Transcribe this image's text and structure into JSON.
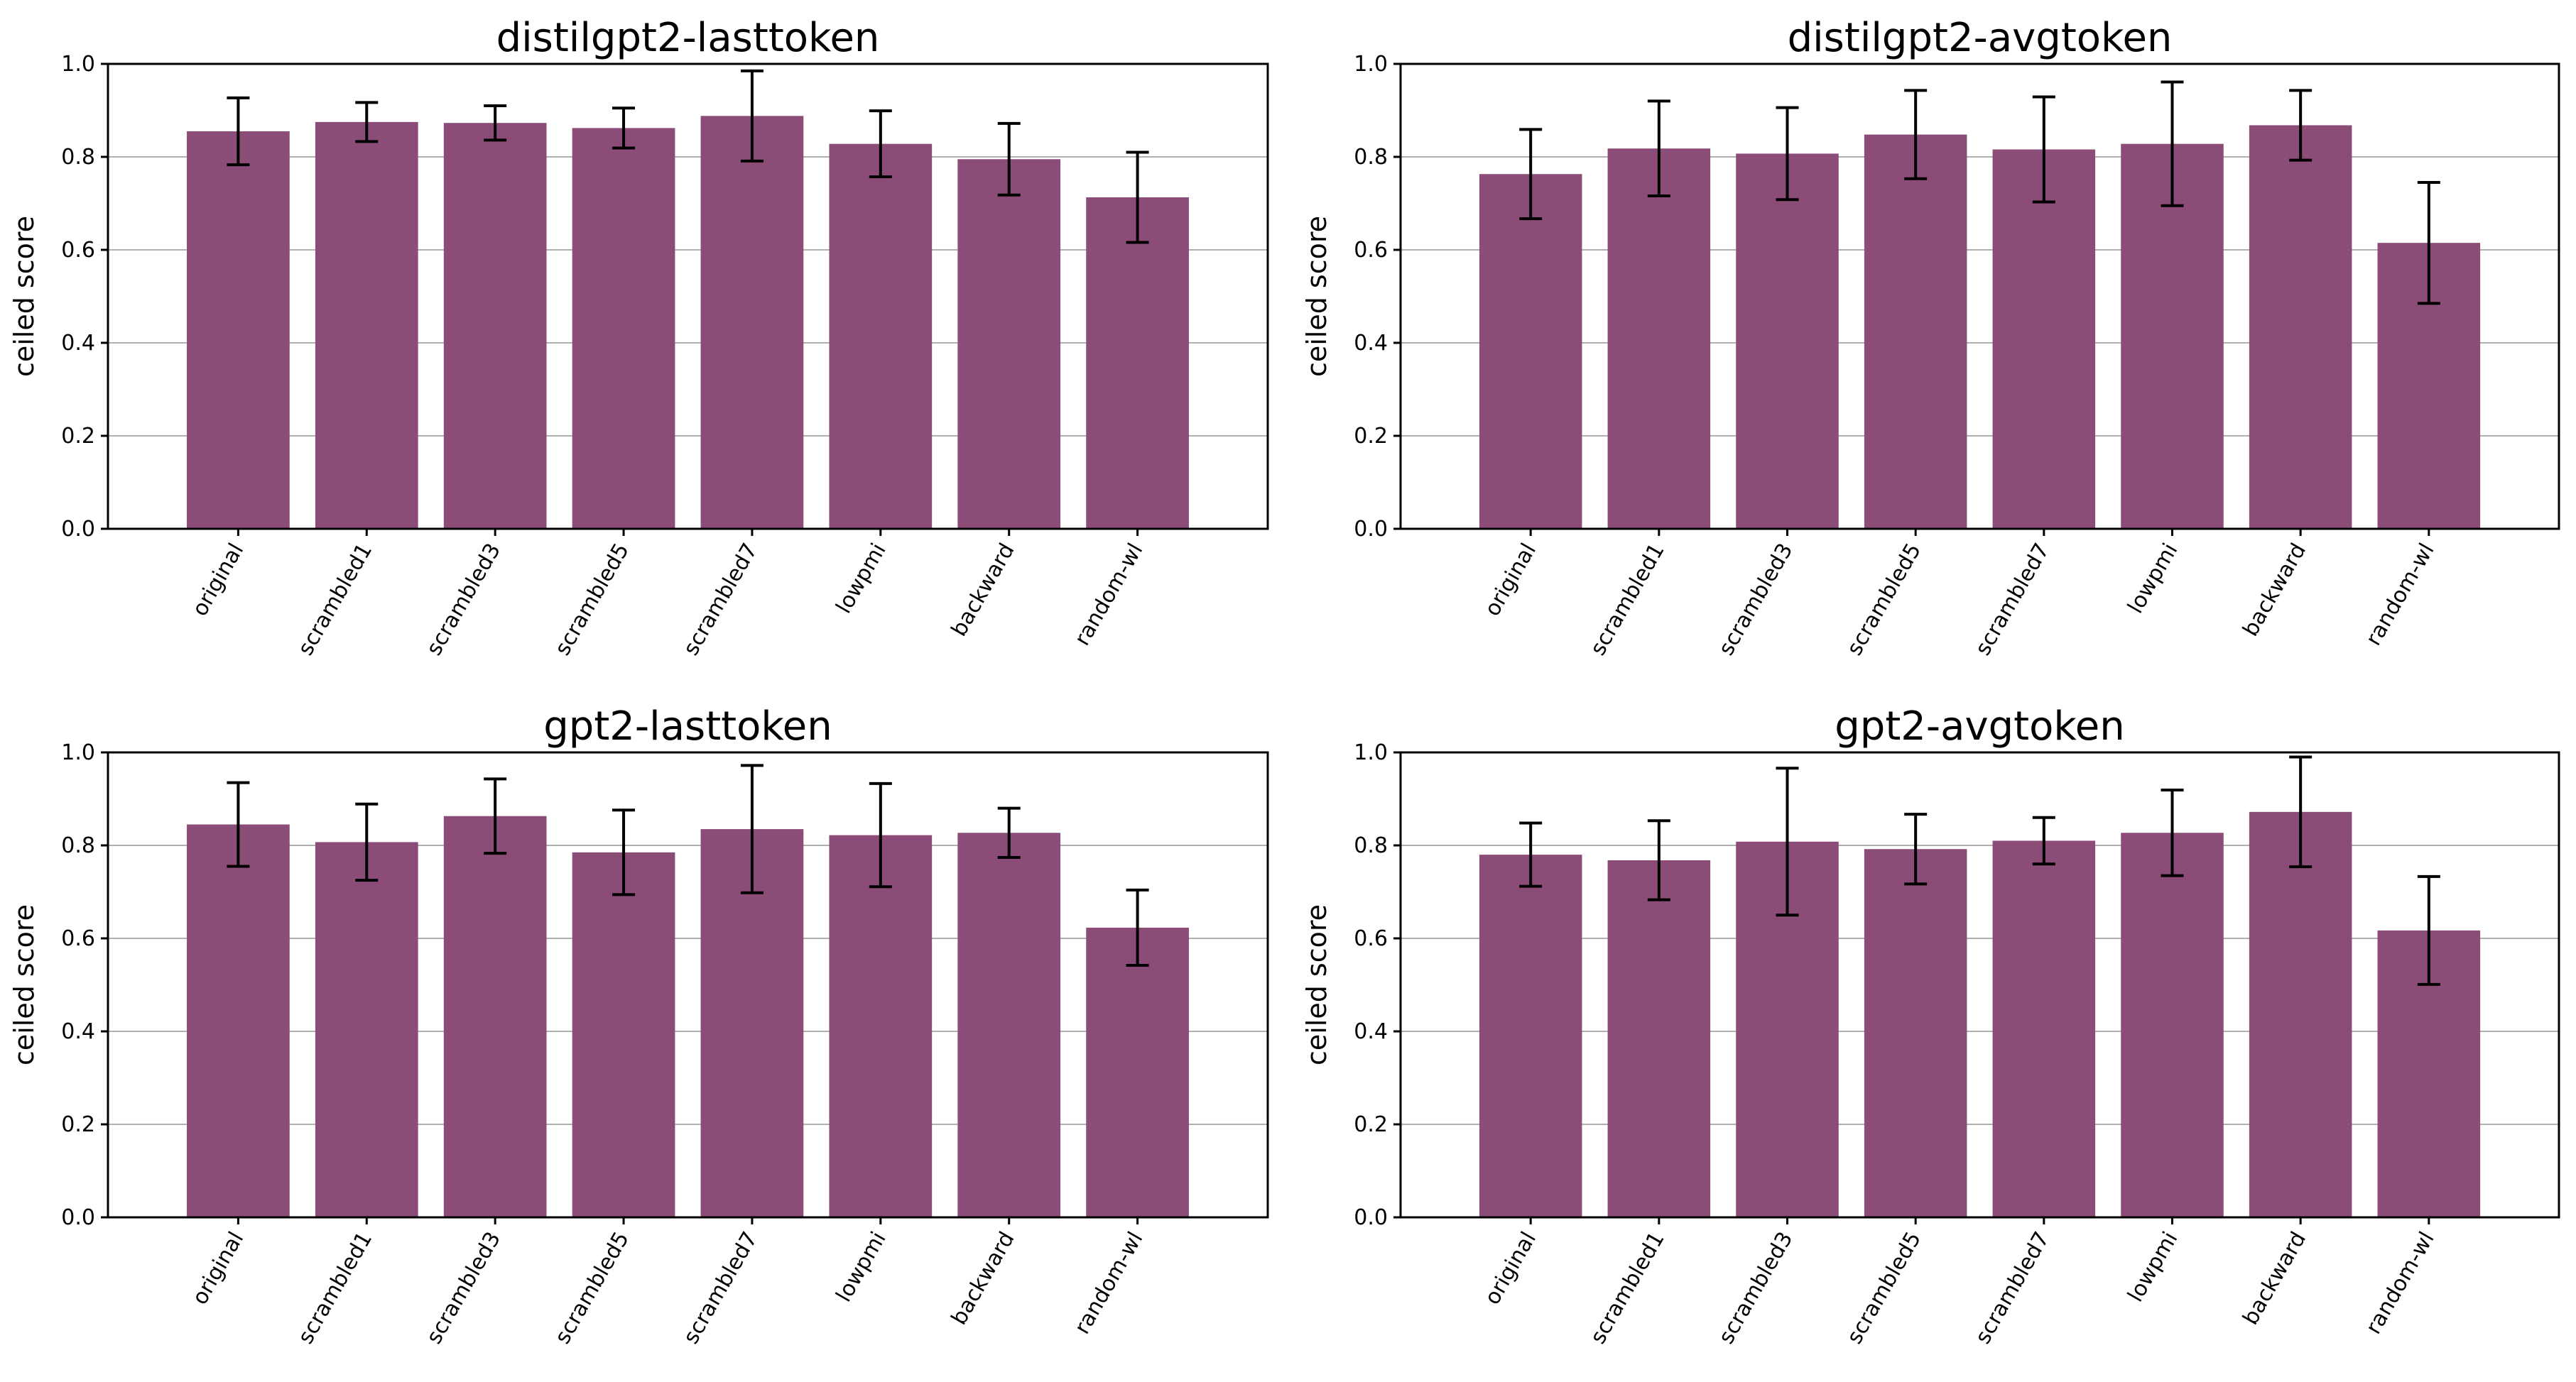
{
  "colors": {
    "bar": "#8B4D78",
    "grid": "#b0b0b0",
    "axis": "#000000",
    "error": "#000000"
  },
  "chart_data": [
    {
      "type": "bar",
      "title": "distilgpt2-lasttoken",
      "xlabel": "",
      "ylabel": "ceiled score",
      "ylim": [
        0,
        1.0
      ],
      "yticks": [
        "0.0",
        "0.2",
        "0.4",
        "0.6",
        "0.8",
        "1.0"
      ],
      "grid": "horizontal",
      "categories": [
        "original",
        "scrambled1",
        "scrambled3",
        "scrambled5",
        "scrambled7",
        "lowpmi",
        "backward",
        "random-wl"
      ],
      "values": [
        0.855,
        0.875,
        0.873,
        0.862,
        0.888,
        0.828,
        0.795,
        0.713
      ],
      "error": [
        0.072,
        0.042,
        0.037,
        0.043,
        0.097,
        0.071,
        0.077,
        0.097
      ]
    },
    {
      "type": "bar",
      "title": "distilgpt2-avgtoken",
      "xlabel": "",
      "ylabel": "ceiled score",
      "ylim": [
        0,
        1.0
      ],
      "yticks": [
        "0.0",
        "0.2",
        "0.4",
        "0.6",
        "0.8",
        "1.0"
      ],
      "grid": "horizontal",
      "categories": [
        "original",
        "scrambled1",
        "scrambled3",
        "scrambled5",
        "scrambled7",
        "lowpmi",
        "backward",
        "random-wl"
      ],
      "values": [
        0.763,
        0.818,
        0.807,
        0.848,
        0.816,
        0.828,
        0.868,
        0.615
      ],
      "error": [
        0.096,
        0.102,
        0.099,
        0.095,
        0.113,
        0.133,
        0.075,
        0.13
      ]
    },
    {
      "type": "bar",
      "title": "gpt2-lasttoken",
      "xlabel": "",
      "ylabel": "ceiled score",
      "ylim": [
        0,
        1.0
      ],
      "yticks": [
        "0.0",
        "0.2",
        "0.4",
        "0.6",
        "0.8",
        "1.0"
      ],
      "grid": "horizontal",
      "categories": [
        "original",
        "scrambled1",
        "scrambled3",
        "scrambled5",
        "scrambled7",
        "lowpmi",
        "backward",
        "random-wl"
      ],
      "values": [
        0.845,
        0.807,
        0.863,
        0.785,
        0.835,
        0.822,
        0.827,
        0.623
      ],
      "error": [
        0.09,
        0.082,
        0.08,
        0.091,
        0.137,
        0.111,
        0.053,
        0.081
      ]
    },
    {
      "type": "bar",
      "title": "gpt2-avgtoken",
      "xlabel": "",
      "ylabel": "ceiled score",
      "ylim": [
        0,
        1.0
      ],
      "yticks": [
        "0.0",
        "0.2",
        "0.4",
        "0.6",
        "0.8",
        "1.0"
      ],
      "grid": "horizontal",
      "categories": [
        "original",
        "scrambled1",
        "scrambled3",
        "scrambled5",
        "scrambled7",
        "lowpmi",
        "backward",
        "random-wl"
      ],
      "values": [
        0.78,
        0.768,
        0.808,
        0.792,
        0.81,
        0.827,
        0.872,
        0.617
      ],
      "error": [
        0.068,
        0.085,
        0.158,
        0.075,
        0.05,
        0.092,
        0.118,
        0.116
      ]
    }
  ]
}
